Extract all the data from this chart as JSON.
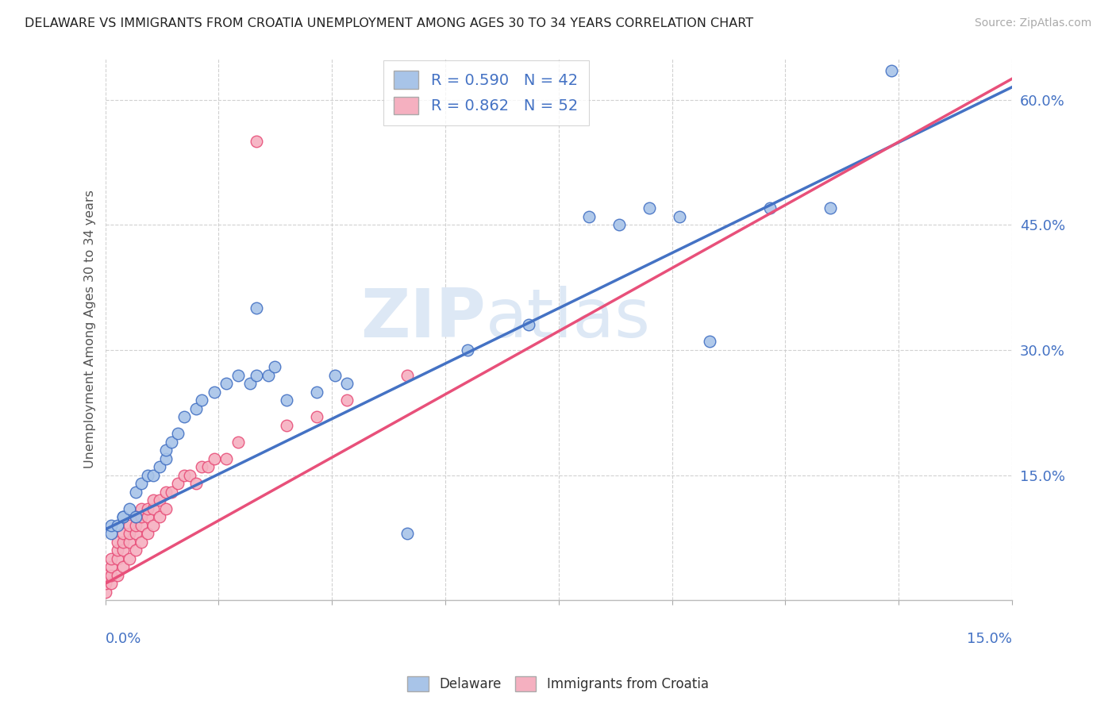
{
  "title": "DELAWARE VS IMMIGRANTS FROM CROATIA UNEMPLOYMENT AMONG AGES 30 TO 34 YEARS CORRELATION CHART",
  "source": "Source: ZipAtlas.com",
  "ylabel": "Unemployment Among Ages 30 to 34 years",
  "xrange": [
    0,
    0.15
  ],
  "yrange": [
    0,
    0.65
  ],
  "delaware_R": "0.590",
  "delaware_N": "42",
  "croatia_R": "0.862",
  "croatia_N": "52",
  "delaware_color": "#a8c4e8",
  "croatia_color": "#f5b0c0",
  "delaware_line_color": "#4472c4",
  "croatia_line_color": "#e8507a",
  "background_color": "#ffffff",
  "grid_color": "#cccccc",
  "del_x": [
    0.001,
    0.001,
    0.002,
    0.003,
    0.003,
    0.004,
    0.005,
    0.005,
    0.006,
    0.007,
    0.008,
    0.009,
    0.01,
    0.01,
    0.011,
    0.012,
    0.013,
    0.015,
    0.016,
    0.018,
    0.02,
    0.022,
    0.024,
    0.025,
    0.025,
    0.027,
    0.028,
    0.03,
    0.035,
    0.038,
    0.04,
    0.05,
    0.06,
    0.07,
    0.08,
    0.085,
    0.09,
    0.095,
    0.1,
    0.11,
    0.12,
    0.13
  ],
  "del_y": [
    0.08,
    0.09,
    0.09,
    0.1,
    0.1,
    0.11,
    0.1,
    0.13,
    0.14,
    0.15,
    0.15,
    0.16,
    0.17,
    0.18,
    0.19,
    0.2,
    0.22,
    0.23,
    0.24,
    0.25,
    0.26,
    0.27,
    0.26,
    0.27,
    0.35,
    0.27,
    0.28,
    0.24,
    0.25,
    0.27,
    0.26,
    0.08,
    0.3,
    0.33,
    0.46,
    0.45,
    0.47,
    0.46,
    0.31,
    0.47,
    0.47,
    0.635
  ],
  "cro_x": [
    0.0,
    0.0,
    0.0,
    0.001,
    0.001,
    0.001,
    0.001,
    0.002,
    0.002,
    0.002,
    0.002,
    0.003,
    0.003,
    0.003,
    0.003,
    0.004,
    0.004,
    0.004,
    0.004,
    0.005,
    0.005,
    0.005,
    0.005,
    0.006,
    0.006,
    0.006,
    0.006,
    0.007,
    0.007,
    0.007,
    0.008,
    0.008,
    0.008,
    0.009,
    0.009,
    0.01,
    0.01,
    0.011,
    0.012,
    0.013,
    0.014,
    0.015,
    0.016,
    0.017,
    0.018,
    0.02,
    0.022,
    0.025,
    0.03,
    0.035,
    0.04,
    0.05
  ],
  "cro_y": [
    0.01,
    0.02,
    0.03,
    0.02,
    0.03,
    0.04,
    0.05,
    0.03,
    0.05,
    0.06,
    0.07,
    0.04,
    0.06,
    0.07,
    0.08,
    0.05,
    0.07,
    0.08,
    0.09,
    0.06,
    0.08,
    0.09,
    0.1,
    0.07,
    0.09,
    0.1,
    0.11,
    0.08,
    0.1,
    0.11,
    0.09,
    0.11,
    0.12,
    0.1,
    0.12,
    0.11,
    0.13,
    0.13,
    0.14,
    0.15,
    0.15,
    0.14,
    0.16,
    0.16,
    0.17,
    0.17,
    0.19,
    0.55,
    0.21,
    0.22,
    0.24,
    0.27
  ],
  "del_line_x0": 0.0,
  "del_line_y0": 0.085,
  "del_line_x1": 0.15,
  "del_line_y1": 0.615,
  "cro_line_x0": 0.0,
  "cro_line_y0": 0.02,
  "cro_line_x1": 0.15,
  "cro_line_y1": 0.625
}
